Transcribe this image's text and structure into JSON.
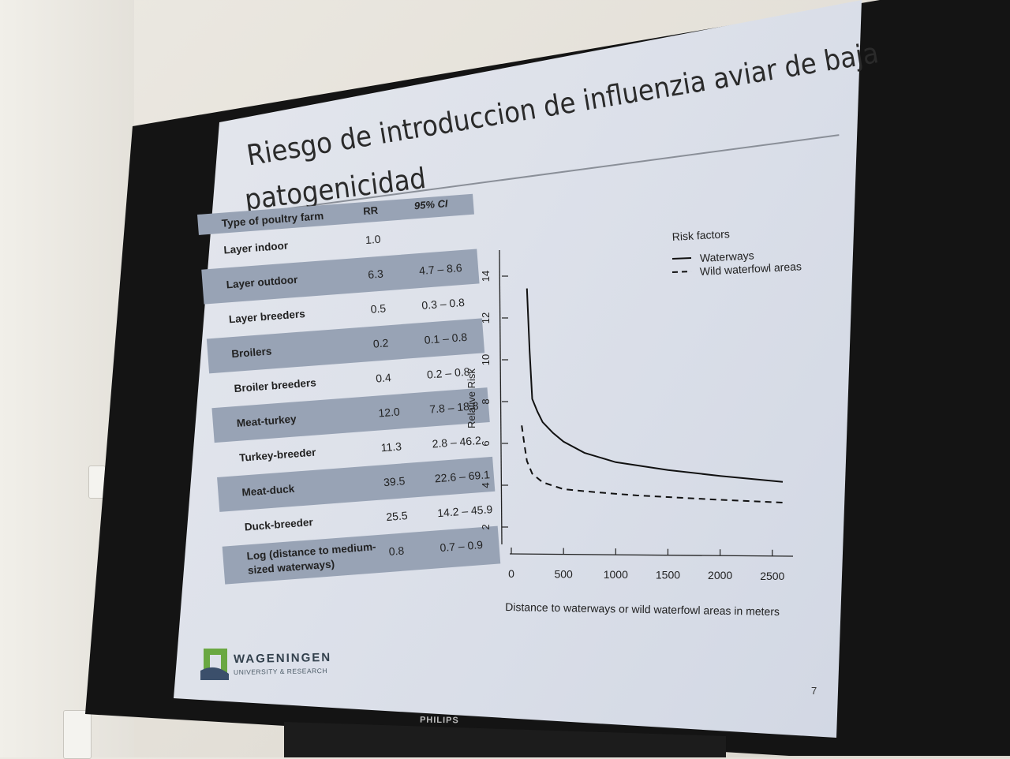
{
  "slide": {
    "title_line1": "Riesgo de introduccion de influenzia aviar de baja",
    "title_line2": "patogenicidad",
    "page_number": "7"
  },
  "table": {
    "headers": {
      "label": "Type of poultry farm",
      "rr": "RR",
      "ci": "95% CI"
    },
    "rows": [
      {
        "label": "Layer indoor",
        "rr": "1.0",
        "ci": ""
      },
      {
        "label": "Layer outdoor",
        "rr": "6.3",
        "ci": "4.7 – 8.6"
      },
      {
        "label": "Layer breeders",
        "rr": "0.5",
        "ci": "0.3 – 0.8"
      },
      {
        "label": "Broilers",
        "rr": "0.2",
        "ci": "0.1 – 0.8"
      },
      {
        "label": "Broiler breeders",
        "rr": "0.4",
        "ci": "0.2 – 0.8"
      },
      {
        "label": "Meat-turkey",
        "rr": "12.0",
        "ci": "7.8 – 18.8"
      },
      {
        "label": "Turkey-breeder",
        "rr": "11.3",
        "ci": "2.8 – 46.2"
      },
      {
        "label": "Meat-duck",
        "rr": "39.5",
        "ci": "22.6 – 69.1"
      },
      {
        "label": "Duck-breeder",
        "rr": "25.5",
        "ci": "14.2 – 45.9"
      },
      {
        "label": "Log (distance to medium-sized waterways)",
        "rr": "0.8",
        "ci": "0.7 – 0.9"
      }
    ]
  },
  "chart_data": {
    "type": "line",
    "title": "",
    "xlabel": "Distance to waterways or wild waterfowl areas in meters",
    "ylabel": "Relative Risk",
    "xlim": [
      0,
      2650
    ],
    "ylim": [
      1,
      15
    ],
    "x_ticks": [
      0,
      500,
      1000,
      1500,
      2000,
      2500
    ],
    "y_ticks": [
      2,
      4,
      6,
      8,
      10,
      12,
      14
    ],
    "legend": {
      "title": "Risk factors",
      "position": "top-right"
    },
    "series": [
      {
        "name": "Waterways",
        "style": "solid",
        "x": [
          150,
          175,
          200,
          250,
          300,
          400,
          500,
          700,
          1000,
          1500,
          2000,
          2600
        ],
        "y": [
          13.5,
          10.5,
          8.2,
          7.6,
          7.1,
          6.6,
          6.2,
          5.7,
          5.3,
          5.0,
          4.8,
          4.6
        ]
      },
      {
        "name": "Wild waterfowl areas",
        "style": "dashed",
        "x": [
          100,
          125,
          150,
          200,
          300,
          500,
          800,
          1200,
          2000,
          2600
        ],
        "y": [
          6.9,
          6.0,
          5.2,
          4.6,
          4.2,
          3.9,
          3.8,
          3.7,
          3.6,
          3.55
        ]
      }
    ]
  },
  "logo": {
    "name": "WAGENINGEN",
    "subtitle": "UNIVERSITY & RESEARCH"
  },
  "monitor": {
    "brand": "PHILIPS"
  },
  "colors": {
    "slide_bg": "#dde1ea",
    "table_shade": "#98a3b5",
    "bezel": "#141414",
    "logo_green": "#6aa842"
  }
}
